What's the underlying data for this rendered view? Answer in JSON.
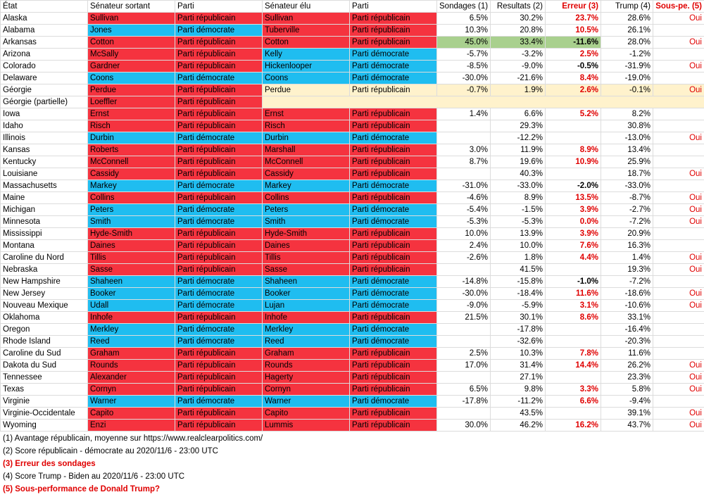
{
  "headers": [
    "État",
    "Sénateur sortant",
    "Parti",
    "Sénateur élu",
    "Parti",
    "Sondages (1)",
    "Resultats (2)",
    "Erreur (3)",
    "Trump (4)",
    "Sous-pe. (5)"
  ],
  "rows": [
    {
      "state": "Alaska",
      "out": "Sullivan",
      "out_party": "Parti républicain",
      "elect": "Sullivan",
      "elect_party": "Parti républicain",
      "poll": "6.5%",
      "result": "30.2%",
      "error": "23.7%",
      "trump": "28.6%",
      "under": "Oui",
      "out_color": "rep",
      "elect_color": "rep",
      "error_color": "red"
    },
    {
      "state": "Alabama",
      "out": "Jones",
      "out_party": "Parti démocrate",
      "elect": "Tuberville",
      "elect_party": "Parti républicain",
      "poll": "10.3%",
      "result": "20.8%",
      "error": "10.5%",
      "trump": "26.1%",
      "under": "",
      "out_color": "dem",
      "elect_color": "rep",
      "error_color": "red"
    },
    {
      "state": "Arkansas",
      "out": "Cotton",
      "out_party": "Parti républicain",
      "elect": "Cotton",
      "elect_party": "Parti républicain",
      "poll": "45.0%",
      "result": "33.4%",
      "error": "-11.6%",
      "trump": "28.0%",
      "under": "Oui",
      "out_color": "rep",
      "elect_color": "rep",
      "error_color": "black",
      "highlight": "green"
    },
    {
      "state": "Arizona",
      "out": "McSally",
      "out_party": "Parti républicain",
      "elect": "Kelly",
      "elect_party": "Parti démocrate",
      "poll": "-5.7%",
      "result": "-3.2%",
      "error": "2.5%",
      "trump": "-1.2%",
      "under": "",
      "out_color": "rep",
      "elect_color": "dem",
      "error_color": "red"
    },
    {
      "state": "Colorado",
      "out": "Gardner",
      "out_party": "Parti républicain",
      "elect": "Hickenlooper",
      "elect_party": "Parti démocrate",
      "poll": "-8.5%",
      "result": "-9.0%",
      "error": "-0.5%",
      "trump": "-31.9%",
      "under": "Oui",
      "out_color": "rep",
      "elect_color": "dem",
      "error_color": "black"
    },
    {
      "state": "Delaware",
      "out": "Coons",
      "out_party": "Parti démocrate",
      "elect": "Coons",
      "elect_party": "Parti démocrate",
      "poll": "-30.0%",
      "result": "-21.6%",
      "error": "8.4%",
      "trump": "-19.0%",
      "under": "",
      "out_color": "dem",
      "elect_color": "dem",
      "error_color": "red"
    },
    {
      "state": "Géorgie",
      "out": "Perdue",
      "out_party": "Parti républicain",
      "elect": "Perdue",
      "elect_party": "Parti républicain",
      "poll": "-0.7%",
      "result": "1.9%",
      "error": "2.6%",
      "trump": "-0.1%",
      "under": "Oui",
      "out_color": "rep",
      "elect_color": "pend",
      "error_color": "red"
    },
    {
      "state": "Géorgie (partielle)",
      "out": "Loeffler",
      "out_party": "Parti républicain",
      "elect": "",
      "elect_party": "",
      "poll": "",
      "result": "",
      "error": "",
      "trump": "",
      "under": "",
      "out_color": "rep",
      "elect_color": "pend",
      "error_color": "red",
      "span_pending": true
    },
    {
      "state": "Iowa",
      "out": "Ernst",
      "out_party": "Parti républicain",
      "elect": "Ernst",
      "elect_party": "Parti républicain",
      "poll": "1.4%",
      "result": "6.6%",
      "error": "5.2%",
      "trump": "8.2%",
      "under": "",
      "out_color": "rep",
      "elect_color": "rep",
      "error_color": "red"
    },
    {
      "state": "Idaho",
      "out": "Risch",
      "out_party": "Parti républicain",
      "elect": "Risch",
      "elect_party": "Parti républicain",
      "poll": "",
      "result": "29.3%",
      "error": "",
      "trump": "30.8%",
      "under": "",
      "out_color": "rep",
      "elect_color": "rep",
      "error_color": "red"
    },
    {
      "state": "Illinois",
      "out": "Durbin",
      "out_party": "Parti démocrate",
      "elect": "Durbin",
      "elect_party": "Parti démocrate",
      "poll": "",
      "result": "-12.2%",
      "error": "",
      "trump": "-13.0%",
      "under": "Oui",
      "out_color": "dem",
      "elect_color": "dem",
      "error_color": "red"
    },
    {
      "state": "Kansas",
      "out": "Roberts",
      "out_party": "Parti républicain",
      "elect": "Marshall",
      "elect_party": "Parti républicain",
      "poll": "3.0%",
      "result": "11.9%",
      "error": "8.9%",
      "trump": "13.4%",
      "under": "",
      "out_color": "rep",
      "elect_color": "rep",
      "error_color": "red"
    },
    {
      "state": "Kentucky",
      "out": "McConnell",
      "out_party": "Parti républicain",
      "elect": "McConnell",
      "elect_party": "Parti républicain",
      "poll": "8.7%",
      "result": "19.6%",
      "error": "10.9%",
      "trump": "25.9%",
      "under": "",
      "out_color": "rep",
      "elect_color": "rep",
      "error_color": "red"
    },
    {
      "state": "Louisiane",
      "out": "Cassidy",
      "out_party": "Parti républicain",
      "elect": "Cassidy",
      "elect_party": "Parti républicain",
      "poll": "",
      "result": "40.3%",
      "error": "",
      "trump": "18.7%",
      "under": "Oui",
      "out_color": "rep",
      "elect_color": "rep",
      "error_color": "red"
    },
    {
      "state": "Massachusetts",
      "out": "Markey",
      "out_party": "Parti démocrate",
      "elect": "Markey",
      "elect_party": "Parti démocrate",
      "poll": "-31.0%",
      "result": "-33.0%",
      "error": "-2.0%",
      "trump": "-33.0%",
      "under": "",
      "out_color": "dem",
      "elect_color": "dem",
      "error_color": "black"
    },
    {
      "state": "Maine",
      "out": "Collins",
      "out_party": "Parti républicain",
      "elect": "Collins",
      "elect_party": "Parti républicain",
      "poll": "-4.6%",
      "result": "8.9%",
      "error": "13.5%",
      "trump": "-8.7%",
      "under": "Oui",
      "out_color": "rep",
      "elect_color": "rep",
      "error_color": "red"
    },
    {
      "state": "Michigan",
      "out": "Peters",
      "out_party": "Parti démocrate",
      "elect": "Peters",
      "elect_party": "Parti démocrate",
      "poll": "-5.4%",
      "result": "-1.5%",
      "error": "3.9%",
      "trump": "-2.7%",
      "under": "Oui",
      "out_color": "dem",
      "elect_color": "dem",
      "error_color": "red"
    },
    {
      "state": "Minnesota",
      "out": "Smith",
      "out_party": "Parti démocrate",
      "elect": "Smith",
      "elect_party": "Parti démocrate",
      "poll": "-5.3%",
      "result": "-5.3%",
      "error": "0.0%",
      "trump": "-7.2%",
      "under": "Oui",
      "out_color": "dem",
      "elect_color": "dem",
      "error_color": "red"
    },
    {
      "state": "Mississippi",
      "out": "Hyde-Smith",
      "out_party": "Parti républicain",
      "elect": "Hyde-Smith",
      "elect_party": "Parti républicain",
      "poll": "10.0%",
      "result": "13.9%",
      "error": "3.9%",
      "trump": "20.9%",
      "under": "",
      "out_color": "rep",
      "elect_color": "rep",
      "error_color": "red"
    },
    {
      "state": "Montana",
      "out": "Daines",
      "out_party": "Parti républicain",
      "elect": "Daines",
      "elect_party": "Parti républicain",
      "poll": "2.4%",
      "result": "10.0%",
      "error": "7.6%",
      "trump": "16.3%",
      "under": "",
      "out_color": "rep",
      "elect_color": "rep",
      "error_color": "red"
    },
    {
      "state": "Caroline du Nord",
      "out": "Tillis",
      "out_party": "Parti républicain",
      "elect": "Tillis",
      "elect_party": "Parti républicain",
      "poll": "-2.6%",
      "result": "1.8%",
      "error": "4.4%",
      "trump": "1.4%",
      "under": "Oui",
      "out_color": "rep",
      "elect_color": "rep",
      "error_color": "red"
    },
    {
      "state": "Nebraska",
      "out": "Sasse",
      "out_party": "Parti républicain",
      "elect": "Sasse",
      "elect_party": "Parti républicain",
      "poll": "",
      "result": "41.5%",
      "error": "",
      "trump": "19.3%",
      "under": "Oui",
      "out_color": "rep",
      "elect_color": "rep",
      "error_color": "red"
    },
    {
      "state": "New Hampshire",
      "out": "Shaheen",
      "out_party": "Parti démocrate",
      "elect": "Shaheen",
      "elect_party": "Parti démocrate",
      "poll": "-14.8%",
      "result": "-15.8%",
      "error": "-1.0%",
      "trump": "-7.2%",
      "under": "",
      "out_color": "dem",
      "elect_color": "dem",
      "error_color": "black"
    },
    {
      "state": "New Jersey",
      "out": "Booker",
      "out_party": "Parti démocrate",
      "elect": "Booker",
      "elect_party": "Parti démocrate",
      "poll": "-30.0%",
      "result": "-18.4%",
      "error": "11.6%",
      "trump": "-18.6%",
      "under": "Oui",
      "out_color": "dem",
      "elect_color": "dem",
      "error_color": "red"
    },
    {
      "state": "Nouveau Mexique",
      "out": "Udall",
      "out_party": "Parti démocrate",
      "elect": "Lujan",
      "elect_party": "Parti démocrate",
      "poll": "-9.0%",
      "result": "-5.9%",
      "error": "3.1%",
      "trump": "-10.6%",
      "under": "Oui",
      "out_color": "dem",
      "elect_color": "dem",
      "error_color": "red"
    },
    {
      "state": "Oklahoma",
      "out": "Inhofe",
      "out_party": "Parti républicain",
      "elect": "Inhofe",
      "elect_party": "Parti républicain",
      "poll": "21.5%",
      "result": "30.1%",
      "error": "8.6%",
      "trump": "33.1%",
      "under": "",
      "out_color": "rep",
      "elect_color": "rep",
      "error_color": "red"
    },
    {
      "state": "Oregon",
      "out": "Merkley",
      "out_party": "Parti démocrate",
      "elect": "Merkley",
      "elect_party": "Parti démocrate",
      "poll": "",
      "result": "-17.8%",
      "error": "",
      "trump": "-16.4%",
      "under": "",
      "out_color": "dem",
      "elect_color": "dem",
      "error_color": "red"
    },
    {
      "state": "Rhode Island",
      "out": "Reed",
      "out_party": "Parti démocrate",
      "elect": "Reed",
      "elect_party": "Parti démocrate",
      "poll": "",
      "result": "-32.6%",
      "error": "",
      "trump": "-20.3%",
      "under": "",
      "out_color": "dem",
      "elect_color": "dem",
      "error_color": "red"
    },
    {
      "state": "Caroline du Sud",
      "out": "Graham",
      "out_party": "Parti républicain",
      "elect": "Graham",
      "elect_party": "Parti républicain",
      "poll": "2.5%",
      "result": "10.3%",
      "error": "7.8%",
      "trump": "11.6%",
      "under": "",
      "out_color": "rep",
      "elect_color": "rep",
      "error_color": "red"
    },
    {
      "state": "Dakota du Sud",
      "out": "Rounds",
      "out_party": "Parti républicain",
      "elect": "Rounds",
      "elect_party": "Parti républicain",
      "poll": "17.0%",
      "result": "31.4%",
      "error": "14.4%",
      "trump": "26.2%",
      "under": "Oui",
      "out_color": "rep",
      "elect_color": "rep",
      "error_color": "red"
    },
    {
      "state": "Tennessee",
      "out": "Alexander",
      "out_party": "Parti républicain",
      "elect": "Hagerty",
      "elect_party": "Parti républicain",
      "poll": "",
      "result": "27.1%",
      "error": "",
      "trump": "23.3%",
      "under": "Oui",
      "out_color": "rep",
      "elect_color": "rep",
      "error_color": "red"
    },
    {
      "state": "Texas",
      "out": "Cornyn",
      "out_party": "Parti républicain",
      "elect": "Cornyn",
      "elect_party": "Parti républicain",
      "poll": "6.5%",
      "result": "9.8%",
      "error": "3.3%",
      "trump": "5.8%",
      "under": "Oui",
      "out_color": "rep",
      "elect_color": "rep",
      "error_color": "red"
    },
    {
      "state": "Virginie",
      "out": "Warner",
      "out_party": "Parti démocrate",
      "elect": "Warner",
      "elect_party": "Parti démocrate",
      "poll": "-17.8%",
      "result": "-11.2%",
      "error": "6.6%",
      "trump": "-9.4%",
      "under": "",
      "out_color": "dem",
      "elect_color": "dem",
      "error_color": "red"
    },
    {
      "state": "Virginie-Occidentale",
      "out": "Capito",
      "out_party": "Parti républicain",
      "elect": "Capito",
      "elect_party": "Parti républicain",
      "poll": "",
      "result": "43.5%",
      "error": "",
      "trump": "39.1%",
      "under": "Oui",
      "out_color": "rep",
      "elect_color": "rep",
      "error_color": "red"
    },
    {
      "state": "Wyoming",
      "out": "Enzi",
      "out_party": "Parti républicain",
      "elect": "Lummis",
      "elect_party": "Parti républicain",
      "poll": "30.0%",
      "result": "46.2%",
      "error": "16.2%",
      "trump": "43.7%",
      "under": "Oui",
      "out_color": "rep",
      "elect_color": "rep",
      "error_color": "red"
    }
  ],
  "notes": [
    {
      "text": "(1) Avantage républicain, moyenne sur https://www.realclearpolitics.com/",
      "emphasis": false
    },
    {
      "text": "(2) Score républicain - démocrate au 2020/11/6 - 23:00 UTC",
      "emphasis": false
    },
    {
      "text": "(3) Erreur des sondages",
      "emphasis": true
    },
    {
      "text": "(4) Score Trump - Biden au 2020/11/6 - 23:00 UTC",
      "emphasis": false
    },
    {
      "text": "(5) Sous-performance de Donald Trump?",
      "emphasis": true
    }
  ],
  "colors": {
    "republican": "#f5333f",
    "democrat": "#1fbdf0",
    "pending": "#fff2cc",
    "highlight": "#a9d08e",
    "emphasis": "#e00000"
  }
}
